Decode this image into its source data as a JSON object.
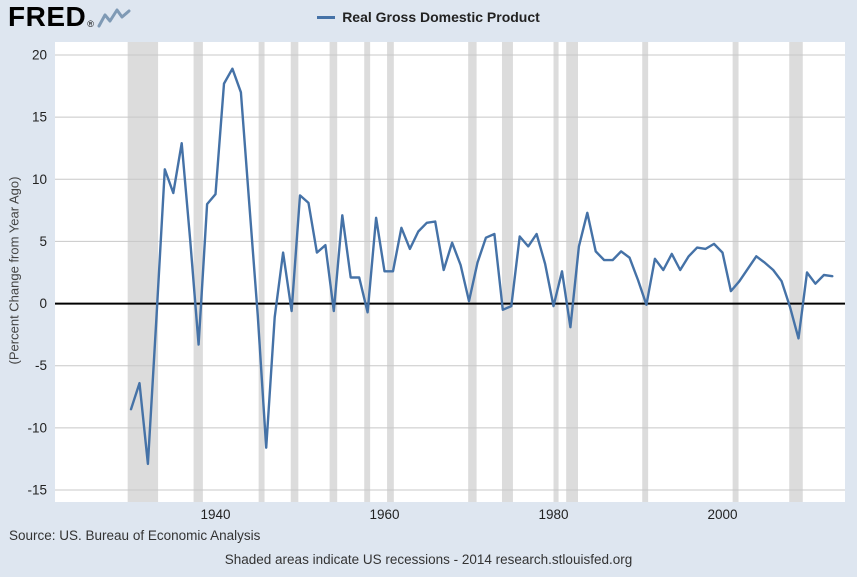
{
  "logo": {
    "text": "FRED",
    "registered": "®"
  },
  "legend": {
    "label": "Real Gross Domestic Product"
  },
  "footer": {
    "source": "Source: US. Bureau of Economic Analysis",
    "note": "Shaded areas indicate US recessions - 2014 research.stlouisfed.org"
  },
  "colors": {
    "background": "#dee6f0",
    "plot_background": "#ffffff",
    "line": "#4572a7",
    "recession": "#dcdcdc",
    "grid": "#c8c8c8",
    "zero_line": "#000000",
    "tick_text": "#222222"
  },
  "chart_data": {
    "type": "line",
    "title": "Real Gross Domestic Product",
    "ylabel": "(Percent Change from Year Ago)",
    "xlabel": "",
    "xlim": [
      1921,
      2014.5
    ],
    "ylim": [
      -15,
      20
    ],
    "y_ticks": [
      20,
      15,
      10,
      5,
      0,
      -5,
      -10,
      -15
    ],
    "x_ticks": [
      1940,
      1960,
      1980,
      2000
    ],
    "grid": true,
    "legend_position": "top",
    "x": [
      1930,
      1931,
      1932,
      1933,
      1934,
      1935,
      1936,
      1937,
      1938,
      1939,
      1940,
      1941,
      1942,
      1943,
      1944,
      1945,
      1946,
      1947,
      1948,
      1949,
      1950,
      1951,
      1952,
      1953,
      1954,
      1955,
      1956,
      1957,
      1958,
      1959,
      1960,
      1961,
      1962,
      1963,
      1964,
      1965,
      1966,
      1967,
      1968,
      1969,
      1970,
      1971,
      1972,
      1973,
      1974,
      1975,
      1976,
      1977,
      1978,
      1979,
      1980,
      1981,
      1982,
      1983,
      1984,
      1985,
      1986,
      1987,
      1988,
      1989,
      1990,
      1991,
      1992,
      1993,
      1994,
      1995,
      1996,
      1997,
      1998,
      1999,
      2000,
      2001,
      2002,
      2003,
      2004,
      2005,
      2006,
      2007,
      2008,
      2009,
      2010,
      2011,
      2012,
      2013
    ],
    "values": [
      -8.5,
      -6.4,
      -12.9,
      -1.2,
      10.8,
      8.9,
      12.9,
      5.1,
      -3.3,
      8.0,
      8.8,
      17.7,
      18.9,
      17.0,
      8.0,
      -1.0,
      -11.6,
      -1.1,
      4.1,
      -0.6,
      8.7,
      8.1,
      4.1,
      4.7,
      -0.6,
      7.1,
      2.1,
      2.1,
      -0.7,
      6.9,
      2.6,
      2.6,
      6.1,
      4.4,
      5.8,
      6.5,
      6.6,
      2.7,
      4.9,
      3.1,
      0.2,
      3.3,
      5.3,
      5.6,
      -0.5,
      -0.2,
      5.4,
      4.6,
      5.6,
      3.2,
      -0.2,
      2.6,
      -1.9,
      4.6,
      7.3,
      4.2,
      3.5,
      3.5,
      4.2,
      3.7,
      1.9,
      -0.1,
      3.6,
      2.7,
      4.0,
      2.7,
      3.8,
      4.5,
      4.4,
      4.8,
      4.1,
      1.0,
      1.8,
      2.8,
      3.8,
      3.3,
      2.7,
      1.8,
      -0.3,
      -2.8,
      2.5,
      1.6,
      2.3,
      2.2
    ],
    "recessions": [
      [
        1929.6,
        1933.2
      ],
      [
        1937.4,
        1938.5
      ],
      [
        1945.1,
        1945.8
      ],
      [
        1948.9,
        1949.8
      ],
      [
        1953.5,
        1954.4
      ],
      [
        1957.6,
        1958.3
      ],
      [
        1960.3,
        1961.1
      ],
      [
        1969.9,
        1970.9
      ],
      [
        1973.9,
        1975.2
      ],
      [
        1980.0,
        1980.6
      ],
      [
        1981.5,
        1982.9
      ],
      [
        1990.5,
        1991.2
      ],
      [
        2001.2,
        2001.9
      ],
      [
        2007.9,
        2009.5
      ]
    ]
  }
}
